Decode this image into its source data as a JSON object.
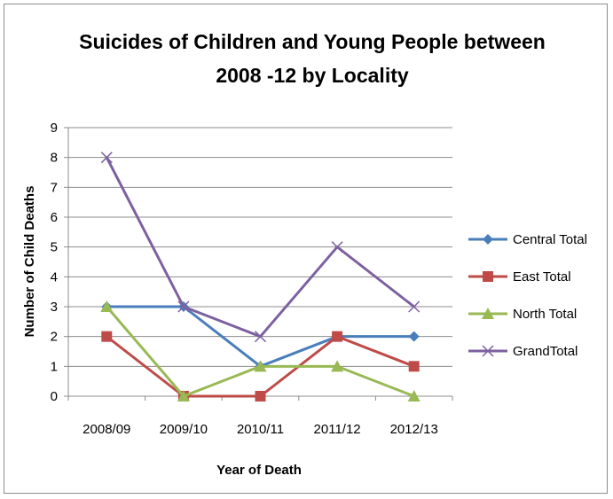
{
  "chart_data": {
    "type": "line",
    "title_lines": [
      "Suicides of Children and Young People between",
      "2008 -12 by Locality"
    ],
    "xlabel": "Year of Death",
    "ylabel": "Number of Child Deaths",
    "categories": [
      "2008/09",
      "2009/10",
      "2010/11",
      "2011/12",
      "2012/13"
    ],
    "ylim": [
      0,
      9
    ],
    "yticks": [
      "0",
      "1",
      "2",
      "3",
      "4",
      "5",
      "6",
      "7",
      "8",
      "9"
    ],
    "grid": true,
    "legend_position": "right",
    "series": [
      {
        "name": "Central Total",
        "values": [
          3,
          3,
          1,
          2,
          2
        ],
        "color": "#4a7ebb",
        "marker": "diamond"
      },
      {
        "name": "East Total",
        "values": [
          2,
          0,
          0,
          2,
          1
        ],
        "color": "#be4b48",
        "marker": "square"
      },
      {
        "name": "North Total",
        "values": [
          3,
          0,
          1,
          1,
          0
        ],
        "color": "#98b954",
        "marker": "triangle"
      },
      {
        "name": "GrandTotal",
        "values": [
          8,
          3,
          2,
          5,
          3
        ],
        "color": "#7d60a0",
        "marker": "x"
      }
    ]
  }
}
